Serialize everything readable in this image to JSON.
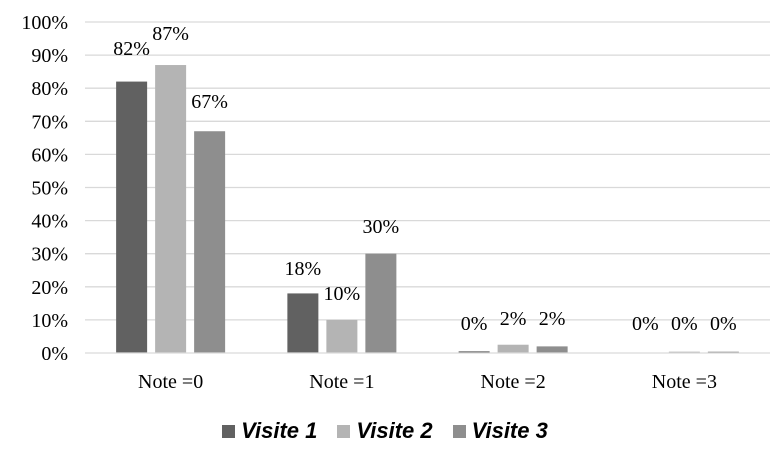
{
  "chart_data": {
    "type": "bar",
    "categories": [
      "Note =0",
      "Note =1",
      "Note =2",
      "Note =3"
    ],
    "series": [
      {
        "name": "Visite 1",
        "values": [
          82,
          18,
          0.5,
          0
        ],
        "labels": [
          "82%",
          "18%",
          "0%",
          "0%"
        ],
        "color": "#616161"
      },
      {
        "name": "Visite 2",
        "values": [
          87,
          10,
          2.5,
          0.4
        ],
        "labels": [
          "87%",
          "10%",
          "2%",
          "0%"
        ],
        "color": "#b4b4b4"
      },
      {
        "name": "Visite 3",
        "values": [
          67,
          30,
          2,
          0.4
        ],
        "labels": [
          "67%",
          "30%",
          "2%",
          "0%"
        ],
        "color": "#8e8e8e"
      }
    ],
    "ylim": [
      0,
      100
    ],
    "yticks": [
      "0%",
      "10%",
      "20%",
      "30%",
      "40%",
      "50%",
      "60%",
      "70%",
      "80%",
      "90%",
      "100%"
    ],
    "grid": true,
    "gridline_color": "#d9d9d9",
    "legend_position": "bottom",
    "title": "",
    "xlabel": "",
    "ylabel": ""
  }
}
